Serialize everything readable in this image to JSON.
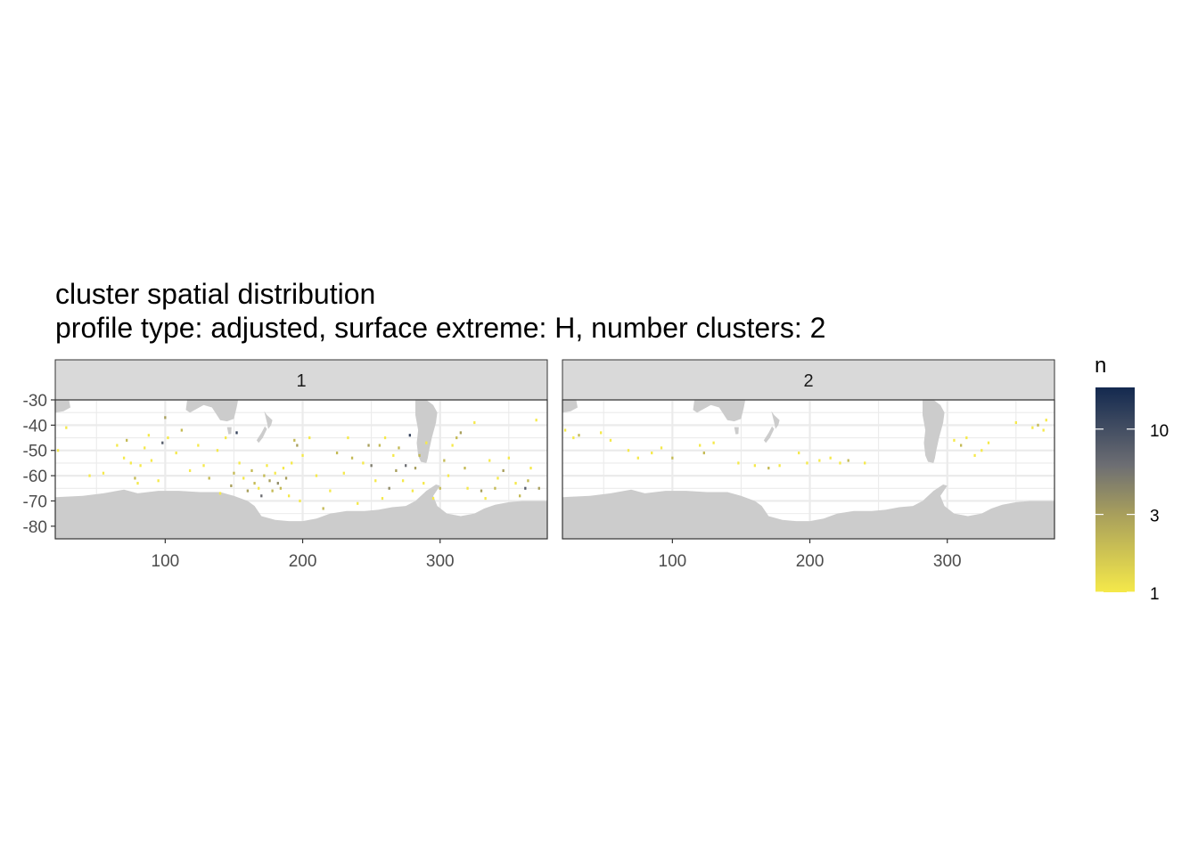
{
  "title": "cluster spatial distribution",
  "subtitle": "profile type: adjusted, surface extreme: H, number clusters: 2",
  "colors": {
    "land": "#cccccc",
    "panel_background": "#ffffff",
    "grid": "#ebebeb",
    "strip_fill": "#d9d9d9",
    "border": "#333333",
    "scale_low": "#f5e94a",
    "scale_mid": "#7d7865",
    "scale_high": "#13294f"
  },
  "chart_data": {
    "type": "heatmap",
    "xlim": [
      20,
      378
    ],
    "ylim": [
      -85,
      -30
    ],
    "x_ticks": [
      "100",
      "200",
      "300"
    ],
    "x_tick_values": [
      100,
      200,
      300
    ],
    "y_ticks": [
      "-30",
      "-40",
      "-50",
      "-60",
      "-70",
      "-80"
    ],
    "y_tick_values": [
      -30,
      -40,
      -50,
      -60,
      -70,
      -80
    ],
    "grid": true,
    "legend": {
      "title": "n",
      "position": "right",
      "scale": "log",
      "range": [
        1,
        18
      ],
      "breaks": [
        1,
        3,
        10
      ],
      "break_labels": [
        "1",
        "3",
        "10"
      ]
    },
    "facets": [
      {
        "label": "1",
        "points": [
          [
            22,
            -50,
            1
          ],
          [
            28,
            -41,
            1
          ],
          [
            45,
            -60,
            1
          ],
          [
            55,
            -59,
            1
          ],
          [
            65,
            -48,
            1
          ],
          [
            70,
            -53,
            1
          ],
          [
            72,
            -46,
            2
          ],
          [
            75,
            -55,
            1
          ],
          [
            78,
            -61,
            2
          ],
          [
            80,
            -63,
            1
          ],
          [
            82,
            -56,
            1
          ],
          [
            85,
            -49,
            1
          ],
          [
            88,
            -44,
            1
          ],
          [
            90,
            -54,
            1
          ],
          [
            95,
            -62,
            1
          ],
          [
            98,
            -47,
            8
          ],
          [
            100,
            -37,
            3
          ],
          [
            102,
            -45,
            1
          ],
          [
            108,
            -51,
            1
          ],
          [
            112,
            -42,
            2
          ],
          [
            118,
            -58,
            1
          ],
          [
            124,
            -48,
            1
          ],
          [
            128,
            -56,
            1
          ],
          [
            132,
            -61,
            2
          ],
          [
            138,
            -50,
            1
          ],
          [
            140,
            -67,
            1
          ],
          [
            144,
            -45,
            1
          ],
          [
            148,
            -64,
            3
          ],
          [
            150,
            -59,
            2
          ],
          [
            152,
            -43,
            12
          ],
          [
            154,
            -55,
            1
          ],
          [
            157,
            -61,
            1
          ],
          [
            160,
            -66,
            3
          ],
          [
            163,
            -58,
            2
          ],
          [
            165,
            -63,
            2
          ],
          [
            168,
            -65,
            1
          ],
          [
            170,
            -68,
            6
          ],
          [
            172,
            -60,
            2
          ],
          [
            174,
            -56,
            1
          ],
          [
            176,
            -62,
            3
          ],
          [
            178,
            -66,
            2
          ],
          [
            180,
            -59,
            1
          ],
          [
            182,
            -63,
            4
          ],
          [
            184,
            -65,
            2
          ],
          [
            186,
            -57,
            1
          ],
          [
            188,
            -61,
            3
          ],
          [
            190,
            -68,
            1
          ],
          [
            192,
            -55,
            1
          ],
          [
            194,
            -46,
            2
          ],
          [
            196,
            -48,
            3
          ],
          [
            198,
            -70,
            1
          ],
          [
            200,
            -52,
            1
          ],
          [
            205,
            -45,
            1
          ],
          [
            210,
            -60,
            1
          ],
          [
            215,
            -73,
            2
          ],
          [
            220,
            -66,
            1
          ],
          [
            225,
            -51,
            2
          ],
          [
            230,
            -59,
            1
          ],
          [
            233,
            -45,
            1
          ],
          [
            236,
            -53,
            2
          ],
          [
            240,
            -71,
            1
          ],
          [
            244,
            -55,
            1
          ],
          [
            248,
            -48,
            3
          ],
          [
            250,
            -56,
            5
          ],
          [
            253,
            -62,
            1
          ],
          [
            256,
            -48,
            2
          ],
          [
            258,
            -69,
            1
          ],
          [
            260,
            -45,
            1
          ],
          [
            263,
            -65,
            4
          ],
          [
            266,
            -52,
            1
          ],
          [
            268,
            -58,
            3
          ],
          [
            270,
            -49,
            2
          ],
          [
            273,
            -62,
            1
          ],
          [
            275,
            -56,
            6
          ],
          [
            278,
            -44,
            12
          ],
          [
            280,
            -66,
            1
          ],
          [
            282,
            -57,
            3
          ],
          [
            285,
            -52,
            2
          ],
          [
            288,
            -63,
            1
          ],
          [
            290,
            -47,
            1
          ],
          [
            295,
            -69,
            1
          ],
          [
            300,
            -65,
            2
          ],
          [
            303,
            -54,
            2
          ],
          [
            306,
            -60,
            1
          ],
          [
            309,
            -48,
            1
          ],
          [
            312,
            -45,
            2
          ],
          [
            315,
            -43,
            3
          ],
          [
            318,
            -57,
            2
          ],
          [
            320,
            -65,
            1
          ],
          [
            325,
            -39,
            1
          ],
          [
            330,
            -66,
            3
          ],
          [
            333,
            -69,
            1
          ],
          [
            336,
            -54,
            1
          ],
          [
            340,
            -65,
            2
          ],
          [
            342,
            -61,
            1
          ],
          [
            346,
            -58,
            3
          ],
          [
            350,
            -53,
            1
          ],
          [
            355,
            -63,
            1
          ],
          [
            358,
            -68,
            2
          ],
          [
            362,
            -65,
            8
          ],
          [
            364,
            -62,
            2
          ],
          [
            366,
            -57,
            1
          ],
          [
            370,
            -38,
            1
          ],
          [
            372,
            -65,
            3
          ]
        ]
      },
      {
        "label": "2",
        "points": [
          [
            22,
            -42,
            1
          ],
          [
            28,
            -45,
            1
          ],
          [
            32,
            -44,
            2
          ],
          [
            48,
            -43,
            1
          ],
          [
            55,
            -46,
            1
          ],
          [
            68,
            -50,
            1
          ],
          [
            75,
            -53,
            1
          ],
          [
            85,
            -51,
            1
          ],
          [
            92,
            -49,
            1
          ],
          [
            100,
            -53,
            2
          ],
          [
            120,
            -48,
            1
          ],
          [
            123,
            -51,
            2
          ],
          [
            130,
            -47,
            1
          ],
          [
            148,
            -55,
            1
          ],
          [
            160,
            -56,
            1
          ],
          [
            170,
            -57,
            2
          ],
          [
            178,
            -56,
            1
          ],
          [
            192,
            -51,
            1
          ],
          [
            198,
            -55,
            1
          ],
          [
            207,
            -54,
            1
          ],
          [
            215,
            -53,
            1
          ],
          [
            222,
            -55,
            1
          ],
          [
            228,
            -54,
            2
          ],
          [
            240,
            -55,
            1
          ],
          [
            305,
            -46,
            1
          ],
          [
            310,
            -48,
            2
          ],
          [
            314,
            -45,
            1
          ],
          [
            320,
            -52,
            1
          ],
          [
            325,
            -50,
            1
          ],
          [
            330,
            -47,
            1
          ],
          [
            350,
            -39,
            1
          ],
          [
            362,
            -41,
            1
          ],
          [
            366,
            -40,
            2
          ],
          [
            370,
            -42,
            1
          ],
          [
            372,
            -38,
            1
          ]
        ]
      }
    ]
  }
}
